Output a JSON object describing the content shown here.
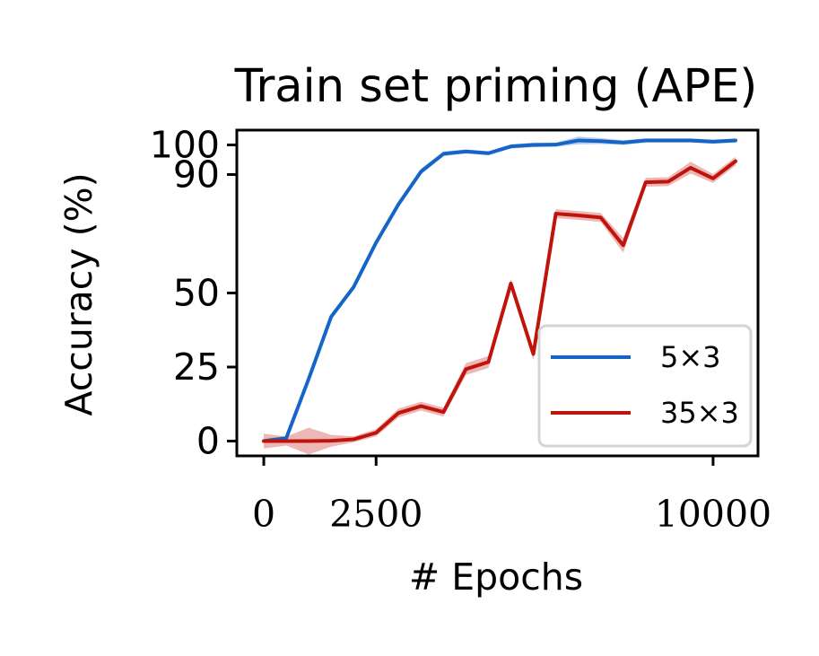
{
  "chart_data": {
    "type": "line",
    "title": "Train set priming (APE)",
    "xlabel": "# Epochs",
    "ylabel": "Accuracy (%)",
    "xlim": [
      -600,
      11000
    ],
    "ylim": [
      -5,
      105
    ],
    "xticks": [
      0,
      2500,
      10000
    ],
    "xtick_labels": [
      "0",
      "2500",
      "10000"
    ],
    "yticks": [
      0,
      25,
      50,
      90,
      100
    ],
    "ytick_labels": [
      "0",
      "25",
      "50",
      "90",
      "100"
    ],
    "grid": false,
    "legend_position": "lower-right",
    "series": [
      {
        "name": "5×3",
        "color": "#1565c8",
        "x": [
          0,
          500,
          1000,
          1500,
          2000,
          2500,
          3000,
          3500,
          4000,
          4500,
          5000,
          5500,
          6000,
          6500,
          7000,
          7500,
          8000,
          8500,
          9000,
          9500,
          10000,
          10500
        ],
        "y": [
          0,
          1,
          21,
          42,
          52,
          67,
          80,
          91,
          97,
          97.8,
          97.2,
          99.5,
          100,
          100.1,
          101.5,
          101.3,
          100.8,
          101.5,
          101.5,
          101.5,
          101.1,
          101.5
        ],
        "band": [
          0.7,
          0.7,
          0.8,
          1,
          1,
          1,
          1,
          1,
          0.8,
          0.7,
          0.7,
          0.7,
          0.8,
          0.7,
          1.3,
          1,
          0.8,
          0.7,
          0.7,
          0.7,
          0.7,
          0.7
        ]
      },
      {
        "name": "35×3",
        "color": "#c0130c",
        "x": [
          0,
          500,
          1000,
          1500,
          2000,
          2500,
          3000,
          3500,
          4000,
          4500,
          5000,
          5500,
          6000,
          6500,
          7000,
          7500,
          8000,
          8500,
          9000,
          9500,
          10000,
          10500
        ],
        "y": [
          0,
          0,
          0,
          0.1,
          0.6,
          2.8,
          9.5,
          11.8,
          9.8,
          24.3,
          26.7,
          53.2,
          29.4,
          76.8,
          76.2,
          75.5,
          66.1,
          87.4,
          87.6,
          92.3,
          88.7,
          94.5
        ],
        "band": [
          2.5,
          1.5,
          4.5,
          2,
          1,
          1.2,
          1.5,
          1.5,
          1.5,
          2,
          2,
          1.5,
          2,
          1.5,
          1.5,
          1.5,
          2.5,
          1.5,
          1.5,
          2,
          1.5,
          1.5
        ]
      }
    ]
  }
}
